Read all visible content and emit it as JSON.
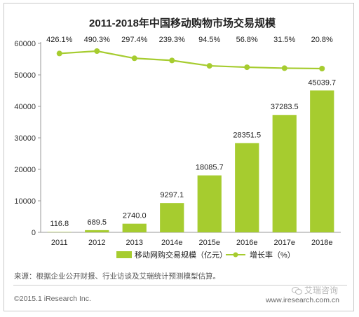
{
  "chart_data": {
    "type": "bar",
    "title": "2011-2018年中国移动购物市场交易规模",
    "categories": [
      "2011",
      "2012",
      "2013",
      "2014e",
      "2015e",
      "2016e",
      "2017e",
      "2018e"
    ],
    "series": [
      {
        "name": "移动网购交易规模（亿元）",
        "type": "bar",
        "axis": "left",
        "values": [
          116.8,
          689.5,
          2740.0,
          9297.1,
          18085.7,
          28351.5,
          37283.5,
          45039.7
        ],
        "labels": [
          "116.8",
          "689.5",
          "2740.0",
          "9297.1",
          "18085.7",
          "28351.5",
          "37283.5",
          "45039.7"
        ]
      },
      {
        "name": "增长率（%）",
        "type": "line",
        "axis": "right",
        "values": [
          426.1,
          490.3,
          297.4,
          239.3,
          94.5,
          56.8,
          31.5,
          20.8
        ],
        "labels": [
          "426.1%",
          "490.3%",
          "297.4%",
          "239.3%",
          "94.5%",
          "56.8%",
          "31.5%",
          "20.8%"
        ]
      }
    ],
    "y_left": {
      "ylim": [
        0,
        60000
      ],
      "ticks": [
        "0",
        "10000",
        "20000",
        "30000",
        "40000",
        "50000",
        "60000"
      ]
    },
    "gridlines": false,
    "legend_position": "bottom",
    "colors": {
      "bar": "#a6cc2f",
      "line": "#a6cc2f",
      "line_marker": "#a6cc2f"
    }
  },
  "footer": {
    "source": "来源：根据企业公开财报、行业访谈及艾瑞统计预测模型估算。",
    "copyright": "©2015.1 iResearch Inc.",
    "website": "www.iresearch.com.cn",
    "watermark": "艾瑞咨询"
  }
}
